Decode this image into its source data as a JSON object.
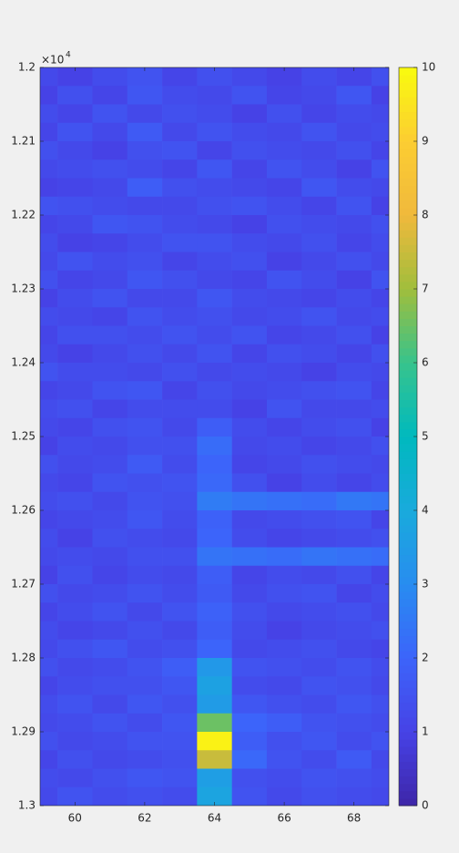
{
  "chart_data": {
    "type": "heatmap",
    "colormap": "parula",
    "x": [
      59,
      60,
      61,
      62,
      63,
      64,
      65,
      66,
      67,
      68,
      69
    ],
    "y": [
      12012.5,
      12037.5,
      12062.5,
      12087.5,
      12112.5,
      12137.5,
      12162.5,
      12187.5,
      12212.5,
      12237.5,
      12262.5,
      12287.5,
      12312.5,
      12337.5,
      12362.5,
      12387.5,
      12412.5,
      12437.5,
      12462.5,
      12487.5,
      12512.5,
      12537.5,
      12562.5,
      12587.5,
      12612.5,
      12637.5,
      12662.5,
      12687.5,
      12712.5,
      12737.5,
      12762.5,
      12787.5,
      12812.5,
      12837.5,
      12862.5,
      12887.5,
      12912.5,
      12937.5,
      12962.5,
      12987.5
    ],
    "values": [
      [
        1.2,
        1.0,
        1.3,
        1.5,
        1.1,
        1.4,
        1.2,
        1.0,
        1.3,
        1.1,
        1.4
      ],
      [
        1.0,
        1.4,
        1.1,
        1.6,
        1.3,
        1.2,
        1.5,
        1.1,
        1.2,
        1.6,
        1.0
      ],
      [
        1.3,
        1.1,
        1.5,
        1.2,
        1.4,
        1.3,
        1.0,
        1.4,
        1.1,
        1.3,
        1.2
      ],
      [
        1.1,
        1.5,
        1.2,
        1.7,
        1.2,
        1.5,
        1.3,
        1.2,
        1.5,
        1.2,
        1.3
      ],
      [
        1.4,
        1.2,
        1.0,
        1.4,
        1.5,
        1.1,
        1.4,
        1.3,
        1.2,
        1.4,
        1.1
      ],
      [
        1.2,
        1.3,
        1.4,
        1.3,
        1.1,
        1.6,
        1.1,
        1.5,
        1.3,
        1.0,
        1.5
      ],
      [
        1.0,
        1.1,
        1.2,
        1.8,
        1.4,
        1.3,
        1.2,
        1.1,
        1.6,
        1.3,
        1.2
      ],
      [
        1.5,
        1.4,
        1.3,
        1.2,
        1.2,
        1.4,
        1.5,
        1.3,
        1.1,
        1.5,
        1.0
      ],
      [
        1.1,
        1.2,
        1.6,
        1.5,
        1.3,
        1.2,
        1.0,
        1.4,
        1.3,
        1.2,
        1.4
      ],
      [
        1.3,
        1.0,
        1.1,
        1.3,
        1.5,
        1.5,
        1.3,
        1.2,
        1.4,
        1.1,
        1.3
      ],
      [
        1.2,
        1.5,
        1.3,
        1.4,
        1.1,
        1.3,
        1.4,
        1.0,
        1.2,
        1.4,
        1.2
      ],
      [
        1.4,
        1.1,
        1.2,
        1.6,
        1.4,
        1.2,
        1.1,
        1.5,
        1.3,
        1.0,
        1.5
      ],
      [
        1.0,
        1.3,
        1.5,
        1.2,
        1.2,
        1.6,
        1.3,
        1.2,
        1.1,
        1.3,
        1.1
      ],
      [
        1.3,
        1.2,
        1.1,
        1.5,
        1.3,
        1.4,
        1.2,
        1.3,
        1.5,
        1.2,
        1.3
      ],
      [
        1.1,
        1.4,
        1.4,
        1.3,
        1.5,
        1.3,
        1.5,
        1.1,
        1.2,
        1.4,
        1.0
      ],
      [
        1.2,
        1.0,
        1.2,
        1.4,
        1.2,
        1.5,
        1.1,
        1.4,
        1.3,
        1.1,
        1.4
      ],
      [
        1.5,
        1.3,
        1.3,
        1.2,
        1.4,
        1.2,
        1.3,
        1.2,
        1.0,
        1.3,
        1.2
      ],
      [
        1.1,
        1.2,
        1.5,
        1.6,
        1.1,
        1.4,
        1.2,
        1.3,
        1.4,
        1.5,
        1.1
      ],
      [
        1.3,
        1.4,
        1.1,
        1.3,
        1.3,
        1.3,
        1.0,
        1.5,
        1.2,
        1.2,
        1.3
      ],
      [
        1.2,
        1.1,
        1.4,
        1.5,
        1.2,
        1.8,
        1.3,
        1.1,
        1.3,
        1.4,
        1.0
      ],
      [
        1.0,
        1.3,
        1.2,
        1.4,
        1.4,
        2.2,
        1.2,
        1.3,
        1.1,
        1.2,
        1.4
      ],
      [
        1.4,
        1.2,
        1.3,
        1.7,
        1.3,
        2.0,
        1.1,
        1.2,
        1.4,
        1.3,
        1.2
      ],
      [
        1.2,
        1.1,
        1.5,
        1.4,
        1.5,
        2.1,
        1.4,
        1.0,
        1.3,
        1.1,
        1.3
      ],
      [
        1.3,
        1.4,
        1.2,
        1.5,
        1.4,
        2.6,
        2.4,
        2.3,
        2.2,
        2.5,
        2.4
      ],
      [
        1.1,
        1.2,
        1.3,
        1.6,
        1.3,
        1.9,
        1.2,
        1.3,
        1.4,
        1.5,
        1.1
      ],
      [
        1.3,
        1.0,
        1.4,
        1.3,
        1.2,
        2.0,
        1.3,
        1.1,
        1.2,
        1.3,
        1.4
      ],
      [
        1.2,
        1.3,
        1.2,
        1.4,
        1.4,
        2.4,
        2.3,
        2.2,
        2.4,
        2.3,
        2.2
      ],
      [
        1.0,
        1.4,
        1.1,
        1.3,
        1.2,
        1.8,
        1.1,
        1.3,
        1.2,
        1.4,
        1.1
      ],
      [
        1.4,
        1.2,
        1.3,
        1.5,
        1.3,
        1.7,
        1.2,
        1.4,
        1.5,
        1.1,
        1.3
      ],
      [
        1.1,
        1.3,
        1.5,
        1.2,
        1.5,
        1.9,
        1.4,
        1.2,
        1.3,
        1.4,
        1.2
      ],
      [
        1.3,
        1.1,
        1.2,
        1.4,
        1.2,
        1.8,
        1.3,
        1.0,
        1.2,
        1.3,
        1.4
      ],
      [
        1.2,
        1.4,
        1.6,
        1.3,
        1.4,
        2.0,
        1.2,
        1.3,
        1.4,
        1.2,
        1.1
      ],
      [
        1.4,
        1.2,
        1.3,
        1.5,
        1.8,
        3.4,
        1.5,
        1.4,
        1.3,
        1.5,
        1.3
      ],
      [
        1.1,
        1.3,
        1.4,
        1.4,
        1.6,
        3.7,
        1.3,
        1.2,
        1.5,
        1.4,
        1.2
      ],
      [
        1.3,
        1.5,
        1.2,
        1.6,
        1.4,
        3.5,
        1.6,
        1.4,
        1.3,
        1.6,
        1.4
      ],
      [
        1.2,
        1.3,
        1.5,
        1.3,
        1.6,
        6.5,
        2.0,
        1.8,
        1.5,
        1.4,
        1.3
      ],
      [
        1.4,
        1.2,
        1.3,
        1.5,
        1.5,
        9.8,
        1.8,
        1.4,
        1.6,
        1.3,
        1.5
      ],
      [
        1.1,
        1.4,
        1.2,
        1.3,
        1.4,
        7.5,
        2.1,
        1.5,
        1.3,
        1.7,
        1.2
      ],
      [
        1.3,
        1.2,
        1.4,
        1.6,
        1.5,
        3.6,
        1.4,
        1.3,
        1.5,
        1.4,
        1.3
      ],
      [
        1.2,
        1.5,
        1.3,
        1.4,
        1.3,
        3.8,
        1.5,
        1.2,
        1.4,
        1.3,
        1.2
      ]
    ],
    "xlim": [
      59,
      69
    ],
    "xticks": [
      60,
      62,
      64,
      66,
      68
    ],
    "ylim": [
      12000,
      13000
    ],
    "ydir": "reverse",
    "yticks": [
      {
        "value": 12000,
        "label": "1.2"
      },
      {
        "value": 12100,
        "label": "1.21"
      },
      {
        "value": 12200,
        "label": "1.22"
      },
      {
        "value": 12300,
        "label": "1.23"
      },
      {
        "value": 12400,
        "label": "1.24"
      },
      {
        "value": 12500,
        "label": "1.25"
      },
      {
        "value": 12600,
        "label": "1.26"
      },
      {
        "value": 12700,
        "label": "1.27"
      },
      {
        "value": 12800,
        "label": "1.28"
      },
      {
        "value": 12900,
        "label": "1.29"
      },
      {
        "value": 13000,
        "label": "1.3"
      }
    ],
    "y_multiplier": {
      "base": "×10",
      "exponent": "4"
    },
    "clim": [
      0,
      10
    ],
    "cticks": [
      0,
      1,
      2,
      3,
      4,
      5,
      6,
      7,
      8,
      9,
      10
    ]
  }
}
